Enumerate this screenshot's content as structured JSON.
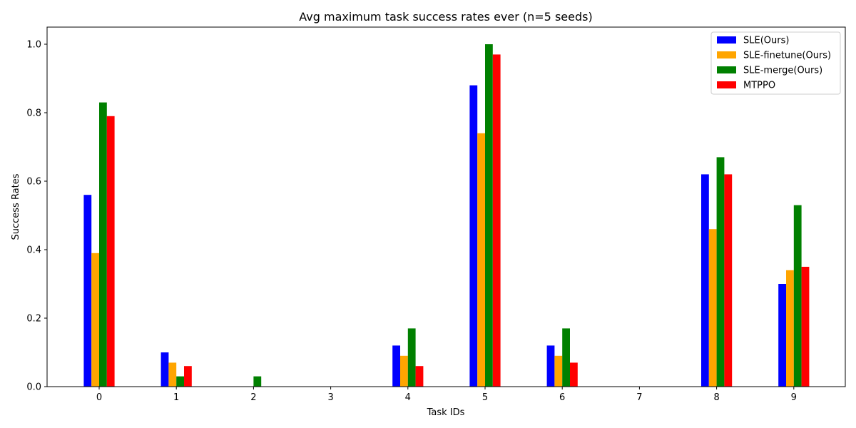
{
  "chart_data": {
    "type": "bar",
    "title": "Avg maximum task success rates ever (n=5 seeds)",
    "xlabel": "Task IDs",
    "ylabel": "Success Rates",
    "categories": [
      "0",
      "1",
      "2",
      "3",
      "4",
      "5",
      "6",
      "7",
      "8",
      "9"
    ],
    "ylim": [
      0,
      1.05
    ],
    "yticks": [
      "0.0",
      "0.2",
      "0.4",
      "0.6",
      "0.8",
      "1.0"
    ],
    "grid": false,
    "legend_position": "top-right",
    "series": [
      {
        "name": "SLE(Ours)",
        "color": "#0000ff",
        "values": [
          0.56,
          0.1,
          0.0,
          0.0,
          0.12,
          0.88,
          0.12,
          0.0,
          0.62,
          0.3
        ]
      },
      {
        "name": "SLE-finetune(Ours)",
        "color": "#ffa500",
        "values": [
          0.39,
          0.07,
          0.0,
          0.0,
          0.09,
          0.74,
          0.09,
          0.0,
          0.46,
          0.34
        ]
      },
      {
        "name": "SLE-merge(Ours)",
        "color": "#008000",
        "values": [
          0.83,
          0.03,
          0.03,
          0.0,
          0.17,
          1.0,
          0.17,
          0.0,
          0.67,
          0.53
        ]
      },
      {
        "name": "MTPPO",
        "color": "#ff0000",
        "values": [
          0.79,
          0.06,
          0.0,
          0.0,
          0.06,
          0.97,
          0.07,
          0.0,
          0.62,
          0.35
        ]
      }
    ]
  }
}
